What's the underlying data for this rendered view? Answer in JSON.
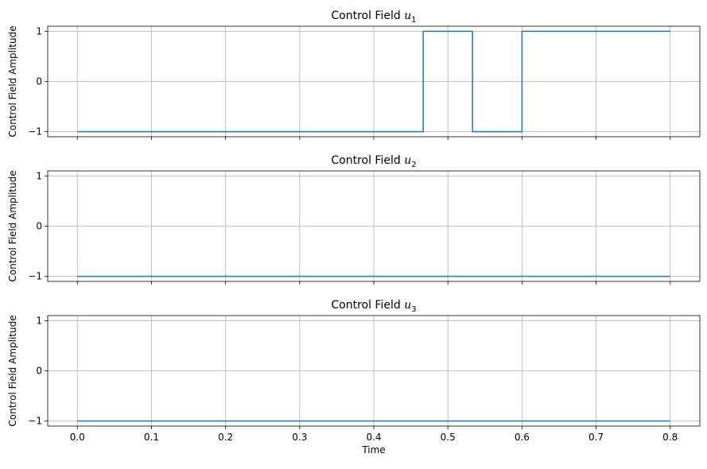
{
  "chart_data": [
    {
      "type": "line",
      "step": "post",
      "title_prefix": "Control Field ",
      "title_var": "u",
      "title_sub": "1",
      "ylabel": "Control Field Amplitude",
      "xlabel": "",
      "xlim": [
        -0.04,
        0.84
      ],
      "ylim": [
        -1.1,
        1.1
      ],
      "xticks": [
        0.0,
        0.1,
        0.2,
        0.3,
        0.4,
        0.5,
        0.6,
        0.7,
        0.8
      ],
      "xtick_labels": [],
      "yticks": [
        -1,
        0,
        1
      ],
      "ytick_labels": [
        "−1",
        "0",
        "1"
      ],
      "grid": true,
      "series": [
        {
          "color": "#1f77b4",
          "x": [
            0.0,
            0.4667,
            0.5333,
            0.6,
            0.8
          ],
          "y": [
            -1,
            1,
            -1,
            1,
            1
          ]
        }
      ]
    },
    {
      "type": "line",
      "step": "post",
      "title_prefix": "Control Field ",
      "title_var": "u",
      "title_sub": "2",
      "ylabel": "Control Field Amplitude",
      "xlabel": "",
      "xlim": [
        -0.04,
        0.84
      ],
      "ylim": [
        -1.1,
        1.1
      ],
      "xticks": [
        0.0,
        0.1,
        0.2,
        0.3,
        0.4,
        0.5,
        0.6,
        0.7,
        0.8
      ],
      "xtick_labels": [],
      "yticks": [
        -1,
        0,
        1
      ],
      "ytick_labels": [
        "−1",
        "0",
        "1"
      ],
      "grid": true,
      "series": [
        {
          "color": "#1f77b4",
          "x": [
            0.0,
            0.8
          ],
          "y": [
            -1,
            -1
          ]
        }
      ]
    },
    {
      "type": "line",
      "step": "post",
      "title_prefix": "Control Field ",
      "title_var": "u",
      "title_sub": "3",
      "ylabel": "Control Field Amplitude",
      "xlabel": "Time",
      "xlim": [
        -0.04,
        0.84
      ],
      "ylim": [
        -1.1,
        1.1
      ],
      "xticks": [
        0.0,
        0.1,
        0.2,
        0.3,
        0.4,
        0.5,
        0.6,
        0.7,
        0.8
      ],
      "xtick_labels": [
        "0.0",
        "0.1",
        "0.2",
        "0.3",
        "0.4",
        "0.5",
        "0.6",
        "0.7",
        "0.8"
      ],
      "yticks": [
        -1,
        0,
        1
      ],
      "ytick_labels": [
        "−1",
        "0",
        "1"
      ],
      "grid": true,
      "series": [
        {
          "color": "#1f77b4",
          "x": [
            0.0,
            0.8
          ],
          "y": [
            -1,
            -1
          ]
        }
      ]
    }
  ]
}
